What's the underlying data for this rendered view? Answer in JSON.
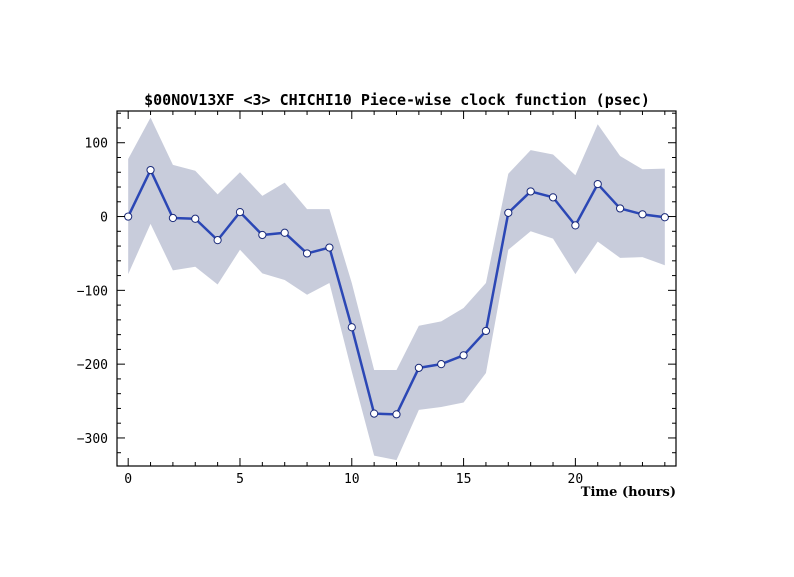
{
  "chart_data": {
    "type": "line",
    "title": "$00NOV13XF <3>  CHICHI10  Piece-wise clock function (psec)",
    "xlabel": "Time (hours)",
    "ylabel": "",
    "xlim": [
      -0.5,
      24.5
    ],
    "ylim": [
      -338,
      143
    ],
    "x_ticks": [
      0,
      5,
      10,
      15,
      20
    ],
    "y_ticks": [
      100,
      0,
      -100,
      -200,
      -300
    ],
    "x_tick_labels": [
      "0",
      "5",
      "10",
      "15",
      "20"
    ],
    "y_tick_labels": [
      "100",
      "0",
      "−100",
      "−200",
      "−300"
    ],
    "grid": false,
    "series": [
      {
        "x": [
          0,
          1,
          2,
          3,
          4,
          5,
          6,
          7,
          8,
          9,
          10,
          11,
          12,
          13,
          14,
          15,
          16,
          17,
          18,
          19,
          20,
          21,
          22,
          23,
          24
        ],
        "values": [
          0,
          63,
          -2,
          -3,
          -32,
          6,
          -25,
          -22,
          -50,
          -42,
          -150,
          -267,
          -268,
          -205,
          -200,
          -188,
          -155,
          5,
          34,
          26,
          -12,
          44,
          11,
          3,
          -1
        ],
        "lower": [
          -78,
          -10,
          -73,
          -68,
          -92,
          -45,
          -77,
          -86,
          -106,
          -90,
          -210,
          -324,
          -330,
          -262,
          -258,
          -252,
          -212,
          -45,
          -20,
          -30,
          -78,
          -34,
          -56,
          -55,
          -66
        ],
        "upper": [
          78,
          134,
          70,
          62,
          30,
          60,
          28,
          46,
          10,
          10,
          -90,
          -208,
          -208,
          -148,
          -142,
          -124,
          -90,
          58,
          90,
          84,
          56,
          125,
          82,
          64,
          65
        ],
        "color": "#2b47b5",
        "band_color": "#c8ccdb"
      }
    ]
  }
}
